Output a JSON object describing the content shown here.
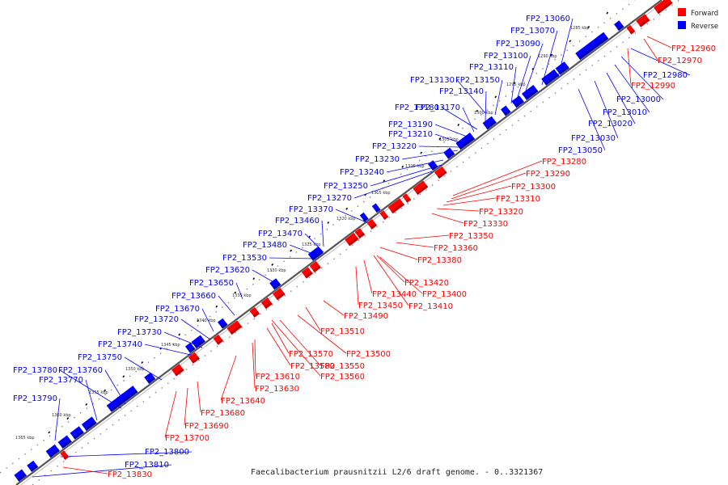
{
  "caption": "Faecalibacterium prausnitzii L2/6 draft genome. - 0..3321367",
  "legend": [
    {
      "label": "Forward",
      "color": "#ff0000"
    },
    {
      "label": "Reverse",
      "color": "#0000ff"
    }
  ],
  "colors": {
    "forward": "#ff0000",
    "reverse": "#0000ff",
    "forward_dark": "#c00000",
    "reverse_dark": "#0000aa",
    "backbone": "#555555"
  },
  "ticks": [
    "1285 kbp",
    "1290 kbp",
    "1295 kbp",
    "1300 kbp",
    "1305 kbp",
    "1310 kbp",
    "1315 kbp",
    "1320 kbp",
    "1325 kbp",
    "1330 kbp",
    "1335 kbp",
    "1340 kbp",
    "1345 kbp",
    "1350 kbp",
    "1355 kbp",
    "1360 kbp",
    "1365 kbp"
  ],
  "reverse_labels": [
    "FP2_13060",
    "FP2_13070",
    "FP2_13090",
    "FP2_13100",
    "FP2_13110",
    "FP2_13130",
    "FP2_13150",
    "FP2_13140",
    "FP2_13180",
    "FP2_13170",
    "FP2_13190",
    "FP2_13210",
    "FP2_13220",
    "FP2_13230",
    "FP2_13240",
    "FP2_13250",
    "FP2_13270",
    "FP2_13370",
    "FP2_13460",
    "FP2_13470",
    "FP2_13480",
    "FP2_13530",
    "FP2_13620",
    "FP2_13650",
    "FP2_13660",
    "FP2_13670",
    "FP2_13720",
    "FP2_13730",
    "FP2_13740",
    "FP2_13750",
    "FP2_13780",
    "FP2_13760",
    "FP2_13770",
    "FP2_13790",
    "FP2_12980",
    "FP2_13000",
    "FP2_13010",
    "FP2_13020",
    "FP2_13030",
    "FP2_13050",
    "FP2_13800",
    "FP2_13810"
  ],
  "forward_labels": [
    "FP2_12960",
    "FP2_12970",
    "FP2_12990",
    "FP2_13280",
    "FP2_13290",
    "FP2_13300",
    "FP2_13310",
    "FP2_13320",
    "FP2_13330",
    "FP2_13350",
    "FP2_13360",
    "FP2_13380",
    "FP2_13420",
    "FP2_13440",
    "FP2_13400",
    "FP2_13450",
    "FP2_13410",
    "FP2_13490",
    "FP2_13510",
    "FP2_13500",
    "FP2_13570",
    "FP2_13580",
    "FP2_13550",
    "FP2_13560",
    "FP2_13610",
    "FP2_13630",
    "FP2_13640",
    "FP2_13680",
    "FP2_13690",
    "FP2_13700",
    "FP2_13830"
  ]
}
